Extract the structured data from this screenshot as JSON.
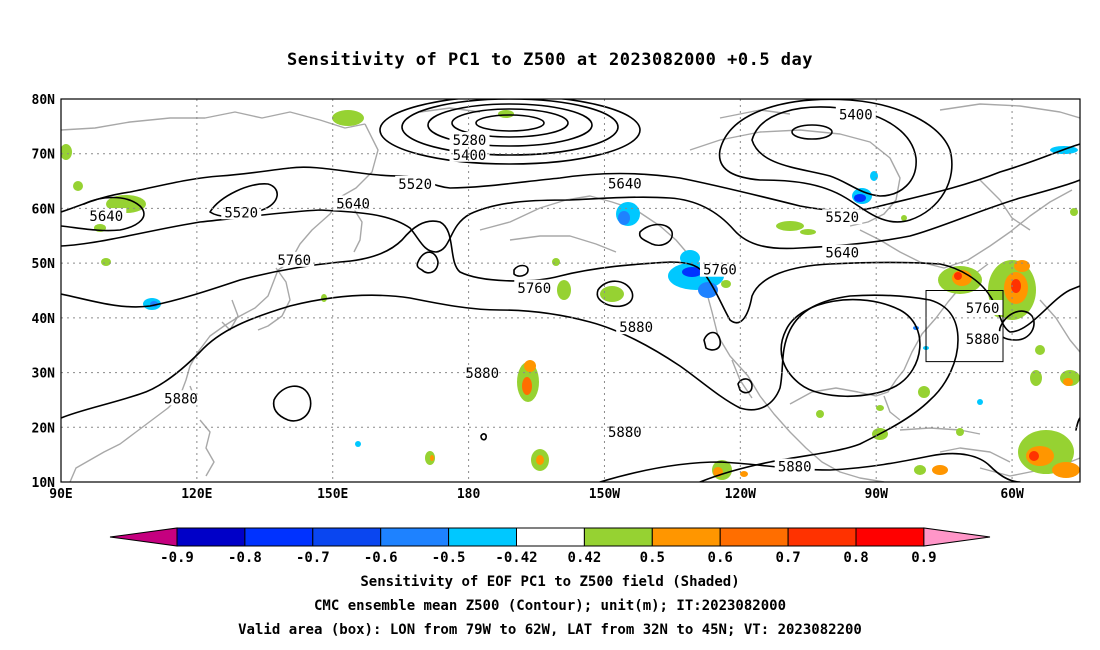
{
  "title": "Sensitivity of PC1 to Z500 at 2023082000 +0.5 day",
  "map": {
    "lat_labels": [
      "80N",
      "70N",
      "60N",
      "50N",
      "40N",
      "30N",
      "20N",
      "10N"
    ],
    "lon_labels": [
      "90E",
      "120E",
      "150E",
      "180",
      "150W",
      "120W",
      "90W",
      "60W"
    ],
    "lon_range_deg": [
      90,
      315
    ],
    "lat_range_deg": [
      10,
      80
    ],
    "contour_color": "#000000",
    "coastline_color": "#a8a8a8",
    "grid_style": "dotted",
    "contour_labels": [
      {
        "text": "5280",
        "lon": 180.2,
        "lat": 72.5
      },
      {
        "text": "5400",
        "lon": 180.2,
        "lat": 69.8
      },
      {
        "text": "5400",
        "lon": 265.5,
        "lat": 77.2
      },
      {
        "text": "5520",
        "lon": 168.2,
        "lat": 64.5
      },
      {
        "text": "5520",
        "lon": 129.8,
        "lat": 59.3
      },
      {
        "text": "5520",
        "lon": 262.5,
        "lat": 58.4
      },
      {
        "text": "5640",
        "lon": 100.0,
        "lat": 58.6
      },
      {
        "text": "5640",
        "lon": 154.5,
        "lat": 60.9
      },
      {
        "text": "5640",
        "lon": 214.5,
        "lat": 64.6
      },
      {
        "text": "5640",
        "lon": 262.5,
        "lat": 51.9
      },
      {
        "text": "5760",
        "lon": 141.5,
        "lat": 50.6
      },
      {
        "text": "5760",
        "lon": 194.5,
        "lat": 45.5
      },
      {
        "text": "5760",
        "lon": 235.5,
        "lat": 48.8
      },
      {
        "text": "5760",
        "lon": 293.5,
        "lat": 41.8
      },
      {
        "text": "5880",
        "lon": 217.0,
        "lat": 38.3
      },
      {
        "text": "5880",
        "lon": 183.0,
        "lat": 29.9
      },
      {
        "text": "5880",
        "lon": 116.5,
        "lat": 25.3
      },
      {
        "text": "5880",
        "lon": 214.5,
        "lat": 19.1
      },
      {
        "text": "5880",
        "lon": 252.0,
        "lat": 12.8
      },
      {
        "text": "5880",
        "lon": 293.5,
        "lat": 36.1
      }
    ],
    "valid_box": {
      "lon_min": 281,
      "lon_max": 298,
      "lat_min": 32,
      "lat_max": 45
    }
  },
  "colorbar": {
    "labels": [
      "-0.9",
      "-0.8",
      "-0.7",
      "-0.6",
      "-0.5",
      "-0.42",
      "0.42",
      "0.5",
      "0.6",
      "0.7",
      "0.8",
      "0.9"
    ],
    "colors": [
      "#c5007f",
      "#0000c8",
      "#0032ff",
      "#0a46f0",
      "#1e82ff",
      "#00c8ff",
      "#ffffff",
      "#96d232",
      "#ff9600",
      "#ff6e00",
      "#ff3200",
      "#ff0000",
      "#ff96c8"
    ]
  },
  "captions": {
    "line1": "Sensitivity of EOF PC1 to Z500 field (Shaded)",
    "line2": "CMC ensemble mean Z500 (Contour); unit(m); IT:2023082000",
    "line3": "Valid area (box): LON from 79W to 62W, LAT from 32N to 45N; VT: 2023082200"
  }
}
